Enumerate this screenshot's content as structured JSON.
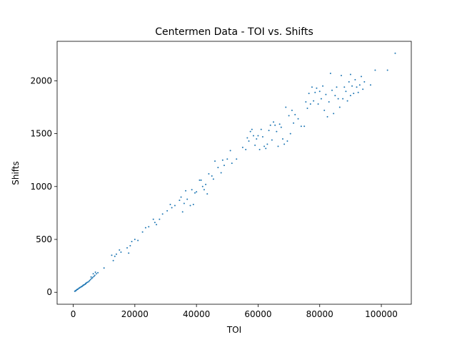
{
  "chart_data": {
    "type": "scatter",
    "title": "Centermen Data - TOI vs. Shifts",
    "x_label": "TOI",
    "y_label": "Shifts",
    "color": "#1f77b4",
    "x": [
      500,
      800,
      1000,
      1200,
      1500,
      1800,
      2000,
      2200,
      2500,
      2800,
      3000,
      3200,
      3500,
      3800,
      4000,
      4300,
      4600,
      5000,
      5300,
      5600,
      6000,
      6300,
      6700,
      7000,
      7500,
      8000,
      10000,
      700,
      1400,
      2600,
      3300,
      4100,
      5800,
      6500,
      7200,
      12500,
      13000,
      13500,
      14000,
      15000,
      15500,
      17500,
      18000,
      18500,
      19000,
      20000,
      21000,
      22500,
      23500,
      24500,
      26000,
      27000,
      26500,
      28000,
      29000,
      30500,
      31500,
      32000,
      33000,
      34500,
      35000,
      35500,
      36000,
      36500,
      37000,
      38000,
      38500,
      39000,
      39500,
      40000,
      41000,
      41500,
      42000,
      42500,
      43000,
      43500,
      44000,
      45000,
      45500,
      46000,
      47000,
      48000,
      48500,
      49000,
      50000,
      51000,
      51500,
      53000,
      55000,
      56000,
      56500,
      57000,
      57500,
      58000,
      58500,
      59000,
      59500,
      60000,
      60500,
      61000,
      61500,
      62000,
      62500,
      63000,
      63500,
      64000,
      64500,
      65000,
      65500,
      66000,
      66500,
      67000,
      67500,
      68000,
      68500,
      69000,
      69500,
      70000,
      70500,
      71000,
      71500,
      72000,
      73000,
      74000,
      75000,
      75500,
      76000,
      76500,
      77000,
      77500,
      78000,
      78500,
      79000,
      79500,
      80000,
      81000,
      81500,
      82000,
      82500,
      83000,
      83500,
      84000,
      85000,
      85500,
      86000,
      86500,
      87000,
      87500,
      88000,
      88500,
      89000,
      89500,
      90000,
      90500,
      91000,
      91500,
      92000,
      92500,
      93000,
      93500,
      94000,
      94500,
      96500,
      98000,
      102000,
      104500,
      90000,
      84500,
      80500
    ],
    "values": [
      10,
      15,
      20,
      25,
      30,
      38,
      40,
      45,
      50,
      55,
      60,
      65,
      70,
      75,
      80,
      88,
      95,
      100,
      110,
      120,
      130,
      140,
      150,
      160,
      175,
      185,
      230,
      12,
      28,
      52,
      68,
      85,
      145,
      175,
      190,
      350,
      300,
      340,
      360,
      400,
      380,
      420,
      370,
      440,
      480,
      500,
      490,
      570,
      610,
      620,
      690,
      640,
      660,
      690,
      740,
      770,
      830,
      800,
      820,
      870,
      900,
      760,
      840,
      960,
      880,
      820,
      970,
      830,
      940,
      950,
      1060,
      1060,
      1000,
      970,
      1020,
      930,
      1120,
      1100,
      1070,
      1240,
      1180,
      1130,
      1250,
      1200,
      1260,
      1340,
      1220,
      1260,
      1370,
      1350,
      1460,
      1430,
      1520,
      1540,
      1480,
      1390,
      1450,
      1480,
      1350,
      1540,
      1470,
      1380,
      1360,
      1400,
      1530,
      1580,
      1440,
      1610,
      1580,
      1520,
      1380,
      1590,
      1560,
      1450,
      1400,
      1750,
      1430,
      1670,
      1500,
      1720,
      1600,
      1680,
      1640,
      1570,
      1570,
      1800,
      1740,
      1880,
      1780,
      1940,
      1810,
      1890,
      1930,
      1780,
      1900,
      1950,
      1720,
      1870,
      1660,
      1800,
      2070,
      1910,
      1860,
      1940,
      1830,
      1750,
      2050,
      1830,
      1940,
      1900,
      1810,
      1990,
      2060,
      1950,
      1880,
      2010,
      1940,
      1890,
      1960,
      2040,
      1920,
      1990,
      1960,
      2100,
      2100,
      2260,
      1860,
      1690,
      1830
    ],
    "xlim": [
      -5225,
      109725
    ],
    "ylim": [
      -113,
      2373
    ],
    "xticks": [
      0,
      20000,
      40000,
      60000,
      80000,
      100000
    ],
    "yticks": [
      0,
      500,
      1000,
      1500,
      2000
    ]
  }
}
